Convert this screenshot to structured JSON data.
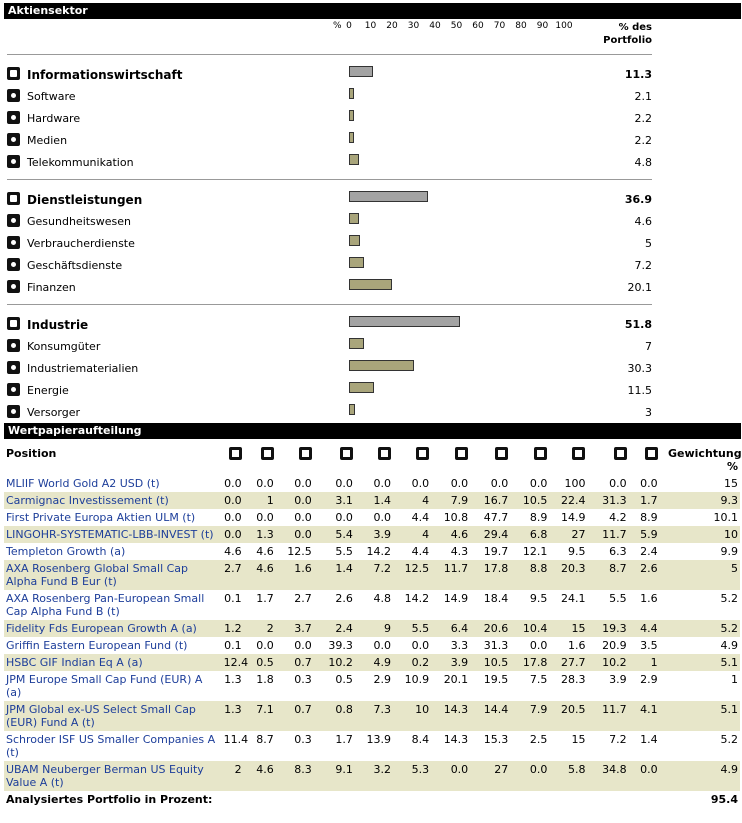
{
  "sectors": {
    "title": "Aktiensektor",
    "axis_label": "%",
    "ticks": [
      0,
      10,
      20,
      30,
      40,
      50,
      60,
      70,
      80,
      90,
      100
    ],
    "value_header": "% des Portfolio",
    "groups": [
      {
        "name": "Informationswirtschaft",
        "value": 11.3,
        "items": [
          {
            "name": "Software",
            "value": 2.1
          },
          {
            "name": "Hardware",
            "value": 2.2
          },
          {
            "name": "Medien",
            "value": 2.2
          },
          {
            "name": "Telekommunikation",
            "value": 4.8
          }
        ]
      },
      {
        "name": "Dienstleistungen",
        "value": 36.9,
        "items": [
          {
            "name": "Gesundheitswesen",
            "value": 4.6
          },
          {
            "name": "Verbraucherdienste",
            "value": 5
          },
          {
            "name": "Geschäftsdienste",
            "value": 7.2
          },
          {
            "name": "Finanzen",
            "value": 20.1
          }
        ]
      },
      {
        "name": "Industrie",
        "value": 51.8,
        "items": [
          {
            "name": "Konsumgüter",
            "value": 7
          },
          {
            "name": "Industriematerialien",
            "value": 30.3
          },
          {
            "name": "Energie",
            "value": 11.5
          },
          {
            "name": "Versorger",
            "value": 3
          }
        ]
      }
    ]
  },
  "holdings": {
    "title": "Wertpapieraufteilung",
    "position_header": "Position",
    "weight_header": "Gewichtung %",
    "rows": [
      {
        "name": "MLIIF World Gold A2 USD (t)",
        "values": [
          "0.0",
          "0.0",
          "0.0",
          "0.0",
          "0.0",
          "0.0",
          "0.0",
          "0.0",
          "0.0",
          "100",
          "0.0",
          "0.0"
        ],
        "weight": "15"
      },
      {
        "name": "Carmignac Investissement (t)",
        "values": [
          "0.0",
          "1",
          "0.0",
          "3.1",
          "1.4",
          "4",
          "7.9",
          "16.7",
          "10.5",
          "22.4",
          "31.3",
          "1.7"
        ],
        "weight": "9.3"
      },
      {
        "name": "First Private Europa Aktien ULM (t)",
        "values": [
          "0.0",
          "0.0",
          "0.0",
          "0.0",
          "0.0",
          "4.4",
          "10.8",
          "47.7",
          "8.9",
          "14.9",
          "4.2",
          "8.9"
        ],
        "weight": "10.1"
      },
      {
        "name": "LINGOHR-SYSTEMATIC-LBB-INVEST (t)",
        "values": [
          "0.0",
          "1.3",
          "0.0",
          "5.4",
          "3.9",
          "4",
          "4.6",
          "29.4",
          "6.8",
          "27",
          "11.7",
          "5.9"
        ],
        "weight": "10"
      },
      {
        "name": "Templeton Growth (a)",
        "values": [
          "4.6",
          "4.6",
          "12.5",
          "5.5",
          "14.2",
          "4.4",
          "4.3",
          "19.7",
          "12.1",
          "9.5",
          "6.3",
          "2.4"
        ],
        "weight": "9.9"
      },
      {
        "name": "AXA Rosenberg Global Small Cap Alpha Fund B Eur (t)",
        "values": [
          "2.7",
          "4.6",
          "1.6",
          "1.4",
          "7.2",
          "12.5",
          "11.7",
          "17.8",
          "8.8",
          "20.3",
          "8.7",
          "2.6"
        ],
        "weight": "5"
      },
      {
        "name": "AXA Rosenberg Pan-European Small Cap Alpha Fund B (t)",
        "values": [
          "0.1",
          "1.7",
          "2.7",
          "2.6",
          "4.8",
          "14.2",
          "14.9",
          "18.4",
          "9.5",
          "24.1",
          "5.5",
          "1.6"
        ],
        "weight": "5.2"
      },
      {
        "name": "Fidelity Fds European Growth A (a)",
        "values": [
          "1.2",
          "2",
          "3.7",
          "2.4",
          "9",
          "5.5",
          "6.4",
          "20.6",
          "10.4",
          "15",
          "19.3",
          "4.4"
        ],
        "weight": "5.2"
      },
      {
        "name": "Griffin Eastern European Fund (t)",
        "values": [
          "0.1",
          "0.0",
          "0.0",
          "39.3",
          "0.0",
          "0.0",
          "3.3",
          "31.3",
          "0.0",
          "1.6",
          "20.9",
          "3.5"
        ],
        "weight": "4.9"
      },
      {
        "name": "HSBC GIF Indian Eq A (a)",
        "values": [
          "12.4",
          "0.5",
          "0.7",
          "10.2",
          "4.9",
          "0.2",
          "3.9",
          "10.5",
          "17.8",
          "27.7",
          "10.2",
          "1"
        ],
        "weight": "5.1"
      },
      {
        "name": "JPM Europe Small Cap Fund (EUR) A (a)",
        "values": [
          "1.3",
          "1.8",
          "0.3",
          "0.5",
          "2.9",
          "10.9",
          "20.1",
          "19.5",
          "7.5",
          "28.3",
          "3.9",
          "2.9"
        ],
        "weight": "1"
      },
      {
        "name": "JPM Global ex-US Select Small Cap (EUR) Fund A (t)",
        "values": [
          "1.3",
          "7.1",
          "0.7",
          "0.8",
          "7.3",
          "10",
          "14.3",
          "14.4",
          "7.9",
          "20.5",
          "11.7",
          "4.1"
        ],
        "weight": "5.1"
      },
      {
        "name": "Schroder ISF US Smaller Companies A (t)",
        "values": [
          "11.4",
          "8.7",
          "0.3",
          "1.7",
          "13.9",
          "8.4",
          "14.3",
          "15.3",
          "2.5",
          "15",
          "7.2",
          "1.4"
        ],
        "weight": "5.2"
      },
      {
        "name": "UBAM Neuberger Berman US Equity Value A (t)",
        "values": [
          "2",
          "4.6",
          "8.3",
          "9.1",
          "3.2",
          "5.3",
          "0.0",
          "27",
          "0.0",
          "5.8",
          "34.8",
          "0.0"
        ],
        "weight": "4.9"
      }
    ],
    "footer_label": "Analysiertes Portfolio in Prozent:",
    "footer_value": "95.4"
  }
}
